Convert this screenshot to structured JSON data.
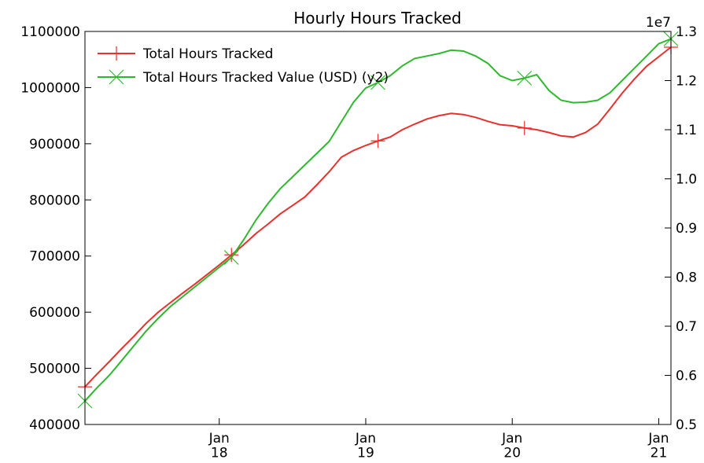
{
  "chart_data": {
    "type": "line",
    "title": "Hourly Hours Tracked",
    "x": [
      "2017-02",
      "2017-03",
      "2017-04",
      "2017-05",
      "2017-06",
      "2017-07",
      "2017-08",
      "2017-09",
      "2017-10",
      "2017-11",
      "2017-12",
      "2018-01",
      "2018-02",
      "2018-03",
      "2018-04",
      "2018-05",
      "2018-06",
      "2018-07",
      "2018-08",
      "2018-09",
      "2018-10",
      "2018-11",
      "2018-12",
      "2019-01",
      "2019-02",
      "2019-03",
      "2019-04",
      "2019-05",
      "2019-06",
      "2019-07",
      "2019-08",
      "2019-09",
      "2019-10",
      "2019-11",
      "2019-12",
      "2020-01",
      "2020-02",
      "2020-03",
      "2020-04",
      "2020-05",
      "2020-06",
      "2020-07",
      "2020-08",
      "2020-09",
      "2020-10",
      "2020-11",
      "2020-12",
      "2021-01",
      "2021-02"
    ],
    "xlim": [
      "2017-02",
      "2021-02"
    ],
    "xticks": [
      {
        "value": "2018-01",
        "label": "Jan\n18"
      },
      {
        "value": "2019-01",
        "label": "Jan\n19"
      },
      {
        "value": "2020-01",
        "label": "Jan\n20"
      },
      {
        "value": "2021-01",
        "label": "Jan\n21"
      }
    ],
    "ylim": [
      400000,
      1100000
    ],
    "yticks": [
      400000,
      500000,
      600000,
      700000,
      800000,
      900000,
      1000000,
      1100000
    ],
    "y2lim": [
      0.5,
      1.3
    ],
    "y2ticks": [
      0.5,
      0.6,
      0.7,
      0.8,
      0.9,
      {
        "value": 1,
        "label": "1.0"
      },
      1.1,
      1.2,
      1.3
    ],
    "y2_offset_label": "1e7",
    "legend": "upper left",
    "markevery": 12,
    "series": [
      {
        "name": "Total Hours Tracked",
        "color": "#e8302c",
        "marker": "+",
        "values": [
          467000,
          490000,
          512000,
          535000,
          557000,
          580000,
          600000,
          617000,
          634000,
          650000,
          667000,
          684000,
          702000,
          720000,
          740000,
          757000,
          775000,
          790000,
          805000,
          827000,
          850000,
          876000,
          888000,
          897000,
          905000,
          912000,
          925000,
          935000,
          944000,
          950000,
          954000,
          952000,
          947000,
          940000,
          934000,
          932000,
          928000,
          925000,
          920000,
          914000,
          912000,
          920000,
          935000,
          962000,
          990000,
          1015000,
          1038000,
          1055000,
          1072000
        ]
      },
      {
        "name": "Total Hours Tracked Value (USD) (y2)",
        "color": "#2eb82e",
        "marker": "x",
        "axis": "y2",
        "values": [
          0.548,
          0.575,
          0.6,
          0.63,
          0.66,
          0.69,
          0.716,
          0.74,
          0.76,
          0.78,
          0.8,
          0.82,
          0.84,
          0.876,
          0.916,
          0.95,
          0.98,
          1.004,
          1.028,
          1.052,
          1.076,
          1.116,
          1.156,
          1.185,
          1.196,
          1.21,
          1.23,
          1.245,
          1.25,
          1.255,
          1.262,
          1.26,
          1.25,
          1.235,
          1.21,
          1.2,
          1.205,
          1.212,
          1.18,
          1.16,
          1.155,
          1.156,
          1.16,
          1.175,
          1.2,
          1.225,
          1.25,
          1.275,
          1.285
        ]
      }
    ]
  }
}
